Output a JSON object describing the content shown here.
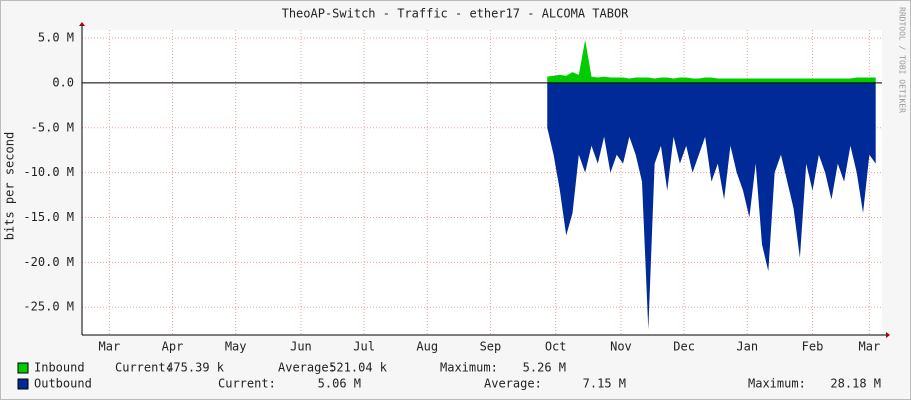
{
  "chart_data": {
    "type": "area",
    "title": "TheoAP-Switch - Traffic - ether17 - ALCOMA TABOR",
    "y_label": "bits per second",
    "watermark": "RRDTOOL / TOBI OETIKER",
    "xlim": [
      0,
      380
    ],
    "xticks": [
      {
        "value": 13,
        "label": "Mar"
      },
      {
        "value": 43,
        "label": "Apr"
      },
      {
        "value": 73,
        "label": "May"
      },
      {
        "value": 104,
        "label": "Jun"
      },
      {
        "value": 134,
        "label": "Jul"
      },
      {
        "value": 164,
        "label": "Aug"
      },
      {
        "value": 194,
        "label": "Sep"
      },
      {
        "value": 225,
        "label": "Oct"
      },
      {
        "value": 256,
        "label": "Nov"
      },
      {
        "value": 286,
        "label": "Dec"
      },
      {
        "value": 316,
        "label": "Jan"
      },
      {
        "value": 347,
        "label": "Feb"
      },
      {
        "value": 374,
        "label": "Mar"
      }
    ],
    "ylim": [
      -28100000,
      5900000
    ],
    "yticks": [
      {
        "value": 5000000,
        "label": "5.0 M"
      },
      {
        "value": 0,
        "label": "0.0"
      },
      {
        "value": -5000000,
        "label": "-5.0 M"
      },
      {
        "value": -10000000,
        "label": "-10.0 M"
      },
      {
        "value": -15000000,
        "label": "-15.0 M"
      },
      {
        "value": -20000000,
        "label": "-20.0 M"
      },
      {
        "value": -25000000,
        "label": "-25.0 M"
      }
    ],
    "grid": true,
    "x": [
      221,
      224,
      227,
      230,
      233,
      236,
      239,
      242,
      245,
      248,
      251,
      254,
      257,
      260,
      263,
      266,
      269,
      272,
      275,
      278,
      281,
      284,
      287,
      290,
      293,
      296,
      299,
      302,
      305,
      308,
      311,
      314,
      317,
      320,
      323,
      326,
      329,
      332,
      335,
      338,
      341,
      344,
      347,
      350,
      353,
      356,
      359,
      362,
      365,
      368,
      371,
      374,
      377
    ],
    "series": [
      {
        "name": "Outbound",
        "color": "#002a97",
        "values": [
          -5000000,
          -8000000,
          -12000000,
          -17000000,
          -14500000,
          -8000000,
          -10000000,
          -7000000,
          -9000000,
          -6000000,
          -10000000,
          -8000000,
          -9000000,
          -6000000,
          -8000000,
          -11000000,
          -27500000,
          -9000000,
          -7000000,
          -12000000,
          -6000000,
          -9000000,
          -7000000,
          -10000000,
          -8000000,
          -6000000,
          -11000000,
          -9000000,
          -13000000,
          -7000000,
          -10000000,
          -12000000,
          -15000000,
          -9000000,
          -18000000,
          -21000000,
          -10000000,
          -8000000,
          -11000000,
          -14000000,
          -19500000,
          -9000000,
          -12000000,
          -8000000,
          -10000000,
          -13000000,
          -9000000,
          -11000000,
          -7000000,
          -10000000,
          -14500000,
          -8000000,
          -9000000
        ],
        "stats": [
          {
            "label": "Current:",
            "value": "5.06 M"
          },
          {
            "label": "Average:",
            "value": "7.15 M"
          },
          {
            "label": "Maximum:",
            "value": "28.18 M"
          }
        ]
      },
      {
        "name": "Inbound",
        "color": "#00cc00",
        "values": [
          700000,
          800000,
          900000,
          800000,
          1200000,
          900000,
          4800000,
          700000,
          600000,
          700000,
          600000,
          600000,
          600000,
          500000,
          600000,
          600000,
          600000,
          500000,
          600000,
          600000,
          500000,
          600000,
          600000,
          500000,
          500000,
          600000,
          600000,
          500000,
          500000,
          500000,
          500000,
          500000,
          500000,
          500000,
          500000,
          500000,
          500000,
          500000,
          500000,
          500000,
          500000,
          500000,
          500000,
          500000,
          500000,
          500000,
          500000,
          500000,
          500000,
          600000,
          600000,
          600000,
          600000
        ],
        "stats": [
          {
            "label": "Current:",
            "value": "475.39 k"
          },
          {
            "label": "Average:",
            "value": "521.04 k"
          },
          {
            "label": "Maximum:",
            "value": "5.26 M"
          }
        ]
      }
    ]
  }
}
